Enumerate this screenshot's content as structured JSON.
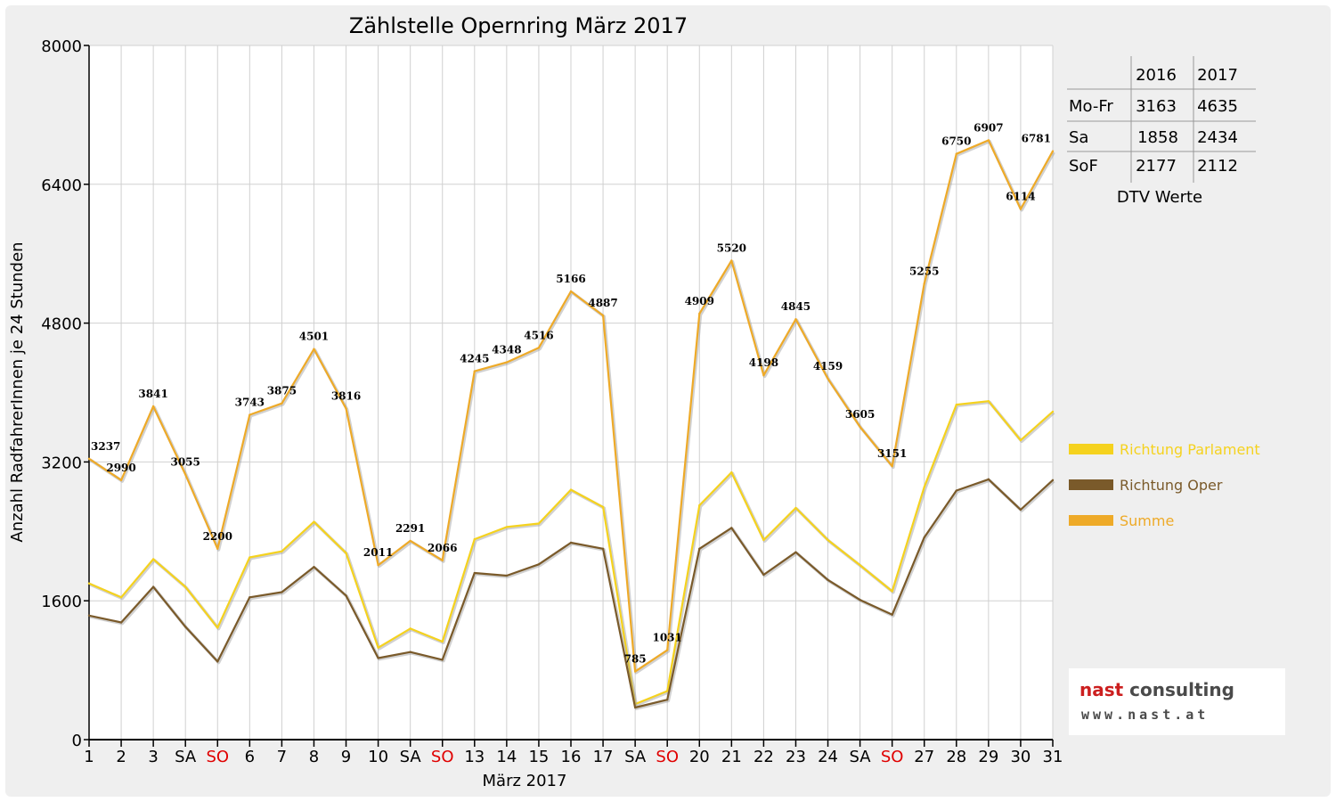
{
  "chart_data": {
    "type": "line",
    "title": "Zählstelle Opernring März 2017",
    "xlabel": "März 2017",
    "ylabel": "Anzahl RadfahrerInnen je 24 Stunden",
    "ylim": [
      0,
      8000
    ],
    "yticks": [
      0,
      1600,
      3200,
      4800,
      6400,
      8000
    ],
    "grid": true,
    "legend_position": "right",
    "categories": [
      "1",
      "2",
      "3",
      "SA",
      "SO",
      "6",
      "7",
      "8",
      "9",
      "10",
      "SA",
      "SO",
      "13",
      "14",
      "15",
      "16",
      "17",
      "SA",
      "SO",
      "20",
      "21",
      "22",
      "23",
      "24",
      "SA",
      "SO",
      "27",
      "28",
      "29",
      "30",
      "31"
    ],
    "weekend_categories": [
      "SA",
      "SO"
    ],
    "series": [
      {
        "name": "Richtung Parlament",
        "color": "#f5d21e",
        "values": [
          1800,
          1640,
          2080,
          1760,
          1290,
          2100,
          2170,
          2510,
          2150,
          1060,
          1280,
          1130,
          2310,
          2450,
          2490,
          2880,
          2680,
          410,
          560,
          2700,
          3080,
          2300,
          2670,
          2300,
          2010,
          1710,
          2910,
          3860,
          3900,
          3450,
          3780
        ]
      },
      {
        "name": "Richtung Oper",
        "color": "#7a5a2a",
        "values": [
          1430,
          1350,
          1760,
          1300,
          900,
          1640,
          1700,
          1990,
          1660,
          940,
          1010,
          920,
          1920,
          1890,
          2020,
          2270,
          2200,
          370,
          460,
          2200,
          2440,
          1900,
          2160,
          1840,
          1610,
          1440,
          2330,
          2870,
          3000,
          2650,
          2990
        ]
      },
      {
        "name": "Summe",
        "color": "#eeaa28",
        "values": [
          3237,
          2990,
          3841,
          3055,
          2200,
          3743,
          3875,
          4501,
          3816,
          2011,
          2291,
          2066,
          4245,
          4348,
          4516,
          5166,
          4887,
          785,
          1031,
          4909,
          5520,
          4198,
          4845,
          4159,
          3605,
          3151,
          5255,
          6750,
          6907,
          6114,
          6781
        ]
      }
    ],
    "data_labels": [
      "3237",
      "2990",
      "3841",
      "3055",
      "2200",
      "3743",
      "3875",
      "4501",
      "3816",
      "2011",
      "2291",
      "2066",
      "4245",
      "4348",
      "4516",
      "5166",
      "4887",
      "785",
      "1031",
      "4909",
      "5520",
      "4198",
      "4845",
      "4159",
      "3605",
      "3151",
      "5255",
      "6750",
      "6907",
      "6114",
      "6781"
    ]
  },
  "dtv_table": {
    "caption": "DTV Werte",
    "headers": [
      "",
      "2016",
      "2017"
    ],
    "rows": [
      {
        "label": "Mo-Fr",
        "v2016": "3163",
        "v2017": "4635"
      },
      {
        "label": "Sa",
        "v2016": "1858",
        "v2017": "2434"
      },
      {
        "label": "SoF",
        "v2016": "2177",
        "v2017": "2112"
      }
    ]
  },
  "logo": {
    "name_accent": "nast",
    "name_rest": " consulting",
    "url": "www.nast.at"
  },
  "colors": {
    "weekend_label": "#e00000",
    "grid": "#d0d0d0"
  }
}
